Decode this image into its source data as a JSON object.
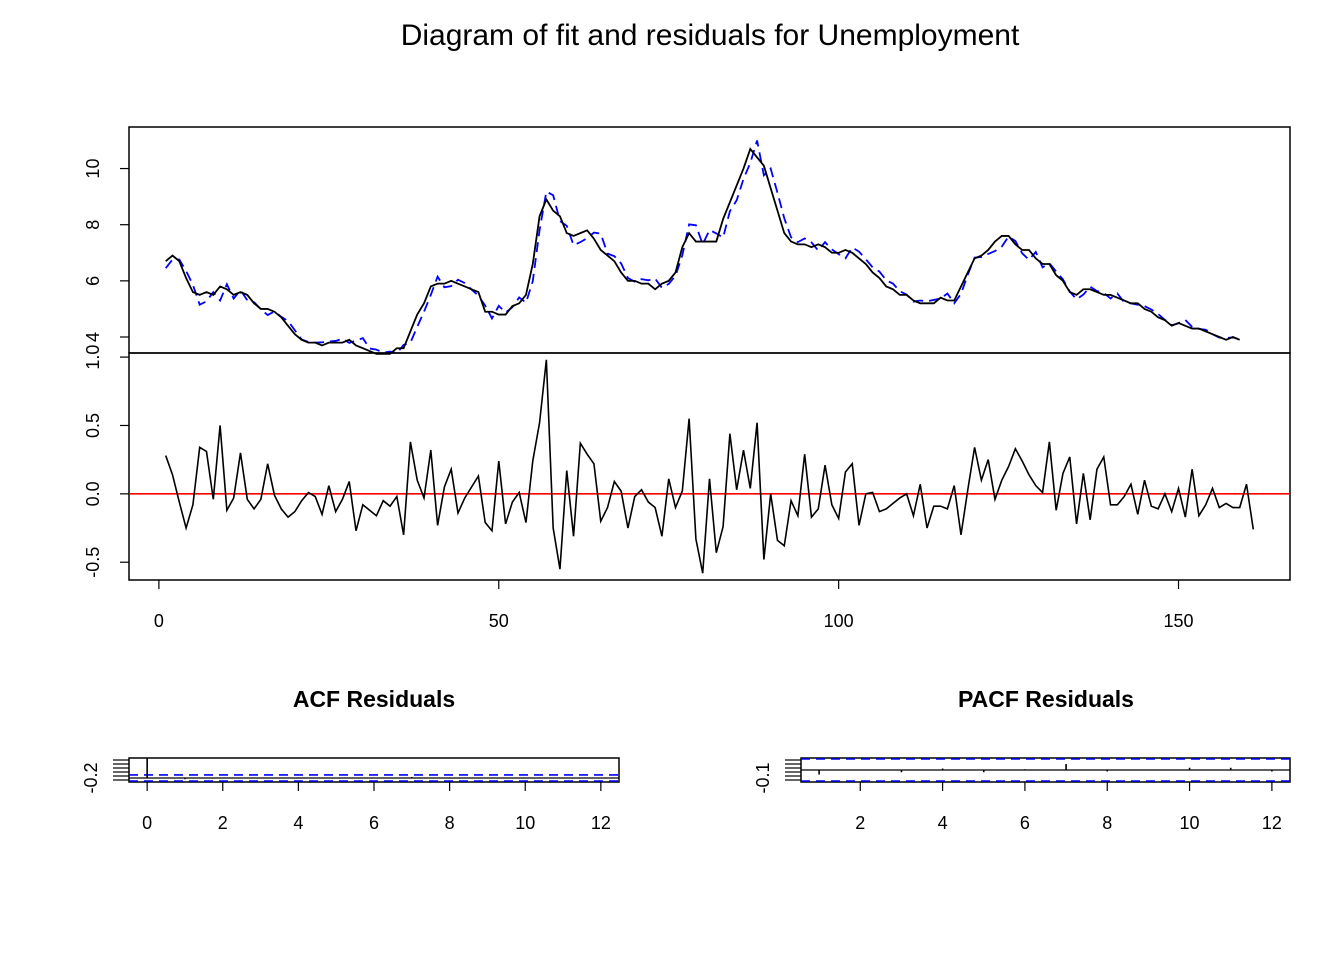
{
  "title": "Diagram of fit and residuals for Unemployment",
  "chart_data": [
    {
      "type": "line",
      "name_key": "fit",
      "title": "",
      "x_start": 1,
      "actual": [
        6.7,
        6.9,
        6.7,
        6.1,
        5.6,
        5.5,
        5.6,
        5.5,
        5.8,
        5.7,
        5.5,
        5.6,
        5.5,
        5.2,
        5.0,
        5.0,
        4.9,
        4.7,
        4.4,
        4.1,
        3.9,
        3.8,
        3.8,
        3.7,
        3.8,
        3.8,
        3.8,
        3.9,
        3.7,
        3.6,
        3.5,
        3.4,
        3.4,
        3.4,
        3.6,
        3.6,
        4.2,
        4.8,
        5.2,
        5.8,
        5.9,
        5.9,
        6.0,
        5.9,
        5.8,
        5.7,
        5.6,
        4.9,
        4.9,
        4.8,
        4.8,
        5.1,
        5.2,
        5.5,
        6.6,
        8.3,
        8.9,
        8.5,
        8.3,
        7.7,
        7.6,
        7.7,
        7.8,
        7.5,
        7.1,
        6.9,
        6.7,
        6.3,
        6.0,
        6.0,
        5.9,
        5.9,
        5.7,
        5.9,
        6.0,
        6.3,
        7.2,
        7.7,
        7.4,
        7.4,
        7.4,
        7.4,
        8.2,
        8.8,
        9.4,
        10.0,
        10.7,
        10.4,
        10.1,
        9.3,
        8.5,
        7.7,
        7.4,
        7.3,
        7.3,
        7.2,
        7.3,
        7.2,
        7.0,
        7.0,
        7.1,
        7.0,
        6.8,
        6.6,
        6.3,
        6.1,
        5.8,
        5.7,
        5.5,
        5.5,
        5.3,
        5.2,
        5.2,
        5.2,
        5.4,
        5.3,
        5.3,
        5.8,
        6.3,
        6.8,
        6.9,
        7.1,
        7.4,
        7.6,
        7.6,
        7.3,
        7.1,
        7.1,
        6.8,
        6.6,
        6.6,
        6.2,
        6.0,
        5.6,
        5.5,
        5.7,
        5.7,
        5.6,
        5.5,
        5.5,
        5.4,
        5.3,
        5.2,
        5.2,
        5.0,
        4.9,
        4.7,
        4.6,
        4.4,
        4.5,
        4.4,
        4.3,
        4.3,
        4.2,
        4.1,
        4.0,
        3.9,
        4.0,
        3.9
      ],
      "fitted": [
        6.45,
        6.76,
        6.76,
        6.35,
        5.86,
        5.15,
        5.27,
        5.6,
        5.3,
        5.88,
        5.37,
        5.67,
        5.31,
        5.24,
        4.99,
        4.78,
        4.91,
        4.72,
        4.57,
        4.24,
        3.91,
        3.82,
        3.8,
        3.81,
        3.84,
        3.86,
        3.94,
        3.79,
        3.87,
        3.96,
        3.59,
        3.55,
        3.44,
        3.48,
        3.42,
        3.72,
        3.8,
        4.36,
        4.9,
        5.5,
        6.15,
        5.77,
        5.81,
        6.04,
        5.92,
        5.69,
        5.47,
        5.12,
        4.66,
        5.11,
        4.87,
        5.06,
        5.41,
        5.22,
        5.99,
        7.8,
        9.18,
        9.05,
        8.13,
        7.96,
        7.27,
        7.38,
        7.52,
        7.72,
        7.68,
        6.97,
        6.88,
        6.62,
        6.1,
        5.97,
        6.06,
        6.02,
        6.08,
        5.75,
        5.89,
        6.18,
        6.91,
        8.01,
        7.98,
        7.3,
        7.81,
        7.69,
        7.54,
        8.48,
        8.87,
        9.63,
        10.2,
        11.0,
        9.76,
        10.0,
        9.14,
        8.23,
        7.55,
        7.38,
        7.51,
        7.37,
        7.08,
        7.38,
        7.12,
        6.95,
        6.8,
        7.19,
        7.04,
        6.77,
        6.48,
        6.33,
        6.02,
        5.9,
        5.63,
        5.51,
        5.26,
        5.3,
        5.27,
        5.32,
        5.37,
        5.55,
        5.2,
        5.54,
        6.22,
        6.83,
        6.85,
        6.96,
        7.06,
        7.22,
        7.58,
        7.42,
        6.98,
        6.75,
        7.03,
        6.48,
        6.63,
        6.33,
        6.05,
        5.62,
        5.34,
        5.51,
        5.79,
        5.64,
        5.57,
        5.37,
        5.55,
        5.24,
        5.2,
        5.15,
        5.1,
        4.98,
        4.82,
        4.61,
        4.42,
        4.49,
        4.61,
        4.36,
        4.29,
        4.26,
        4.1,
        3.98,
        3.96,
        3.99,
        3.91
      ],
      "ylim": [
        3.43,
        11.48
      ],
      "yticks": [
        4,
        6,
        8,
        10
      ],
      "ytick_labels": [
        "4",
        "6",
        "8",
        "10"
      ],
      "colors": {
        "actual": "#000000",
        "fitted": "#0000ff"
      }
    },
    {
      "type": "line",
      "name_key": "residuals",
      "title": "",
      "x_start": 1,
      "values": [
        0.28,
        0.14,
        -0.06,
        -0.25,
        -0.08,
        0.34,
        0.31,
        -0.04,
        0.5,
        -0.12,
        -0.03,
        0.3,
        -0.04,
        -0.11,
        -0.04,
        0.22,
        -0.01,
        -0.11,
        -0.17,
        -0.13,
        -0.05,
        0.01,
        -0.02,
        -0.15,
        0.06,
        -0.13,
        -0.04,
        0.09,
        -0.27,
        -0.08,
        -0.12,
        -0.16,
        -0.05,
        -0.09,
        -0.02,
        -0.3,
        0.38,
        0.1,
        -0.03,
        0.32,
        -0.23,
        0.05,
        0.18,
        -0.14,
        -0.03,
        0.05,
        0.13,
        -0.21,
        -0.27,
        0.24,
        -0.22,
        -0.06,
        0.01,
        -0.21,
        0.24,
        0.52,
        0.98,
        -0.25,
        -0.55,
        0.17,
        -0.31,
        0.37,
        0.29,
        0.22,
        -0.2,
        -0.1,
        0.09,
        0.02,
        -0.25,
        -0.02,
        0.03,
        -0.06,
        -0.1,
        -0.31,
        0.11,
        -0.1,
        0.02,
        0.55,
        -0.33,
        -0.58,
        0.11,
        -0.43,
        -0.24,
        0.44,
        0.03,
        0.32,
        0.04,
        0.52,
        -0.48,
        0.0,
        -0.34,
        -0.38,
        -0.05,
        -0.16,
        0.29,
        -0.17,
        -0.11,
        0.21,
        -0.08,
        -0.18,
        0.16,
        0.22,
        -0.23,
        0.0,
        0.01,
        -0.13,
        -0.11,
        -0.07,
        -0.03,
        0.0,
        -0.16,
        0.07,
        -0.25,
        -0.09,
        -0.09,
        -0.11,
        0.06,
        -0.3,
        0.03,
        0.34,
        0.1,
        0.25,
        -0.04,
        0.1,
        0.2,
        0.33,
        0.24,
        0.14,
        0.06,
        0.01,
        0.38,
        -0.12,
        0.15,
        0.27,
        -0.22,
        0.15,
        -0.19,
        0.18,
        0.27,
        -0.08,
        -0.08,
        -0.02,
        0.07,
        -0.15,
        0.1,
        -0.09,
        -0.11,
        0.0,
        -0.13,
        0.04,
        -0.17,
        0.18,
        -0.16,
        -0.08,
        0.04,
        -0.1,
        -0.07,
        -0.1,
        -0.1,
        0.07,
        -0.26
      ],
      "zero_line": 0,
      "ylim": [
        -0.63,
        1.03
      ],
      "yticks": [
        -0.5,
        0.0,
        0.5,
        1.0
      ],
      "ytick_labels": [
        "-0.5",
        "0.0",
        "0.5",
        "1.0"
      ],
      "xlim": [
        -4.4,
        166.4
      ],
      "xticks": [
        0,
        50,
        100,
        150
      ],
      "xtick_labels": [
        "0",
        "50",
        "100",
        "150"
      ],
      "colors": {
        "series": "#000000",
        "zero_line": "#ff0000"
      }
    },
    {
      "type": "bar",
      "name_key": "acf",
      "title": "ACF Residuals",
      "lags": [
        0,
        1,
        2,
        3,
        4,
        5,
        6,
        7,
        8,
        9,
        10,
        11,
        12
      ],
      "values": [
        1.0,
        -0.06,
        0.01,
        -0.02,
        0.03,
        -0.01,
        0.02,
        0.05,
        -0.03,
        0.01,
        -0.02,
        0.02,
        -0.01
      ],
      "conf_limit": 0.155,
      "xlim": [
        -0.48,
        12.48
      ],
      "ylim": [
        -0.2,
        1.0
      ],
      "xticks": [
        0,
        2,
        4,
        6,
        8,
        10,
        12
      ],
      "xtick_labels": [
        "0",
        "2",
        "4",
        "6",
        "8",
        "10",
        "12"
      ],
      "ytick_labels": [
        "-0.2"
      ],
      "colors": {
        "bars": "#000000",
        "conf": "#0000ff"
      }
    },
    {
      "type": "bar",
      "name_key": "pacf",
      "title": "PACF Residuals",
      "lags": [
        1,
        2,
        3,
        4,
        5,
        6,
        7,
        8,
        9,
        10,
        11,
        12
      ],
      "values": [
        -0.06,
        0.0,
        -0.03,
        0.02,
        -0.03,
        0.01,
        0.08,
        -0.02,
        0.0,
        0.03,
        0.03,
        -0.02
      ],
      "conf_limit": 0.155,
      "xlim": [
        0.56,
        12.44
      ],
      "ylim": [
        -0.16,
        0.16
      ],
      "xticks": [
        2,
        4,
        6,
        8,
        10,
        12
      ],
      "xtick_labels": [
        "2",
        "4",
        "6",
        "8",
        "10",
        "12"
      ],
      "ytick_labels": [
        "-0.1"
      ],
      "colors": {
        "bars": "#000000",
        "conf": "#0000ff"
      }
    }
  ]
}
